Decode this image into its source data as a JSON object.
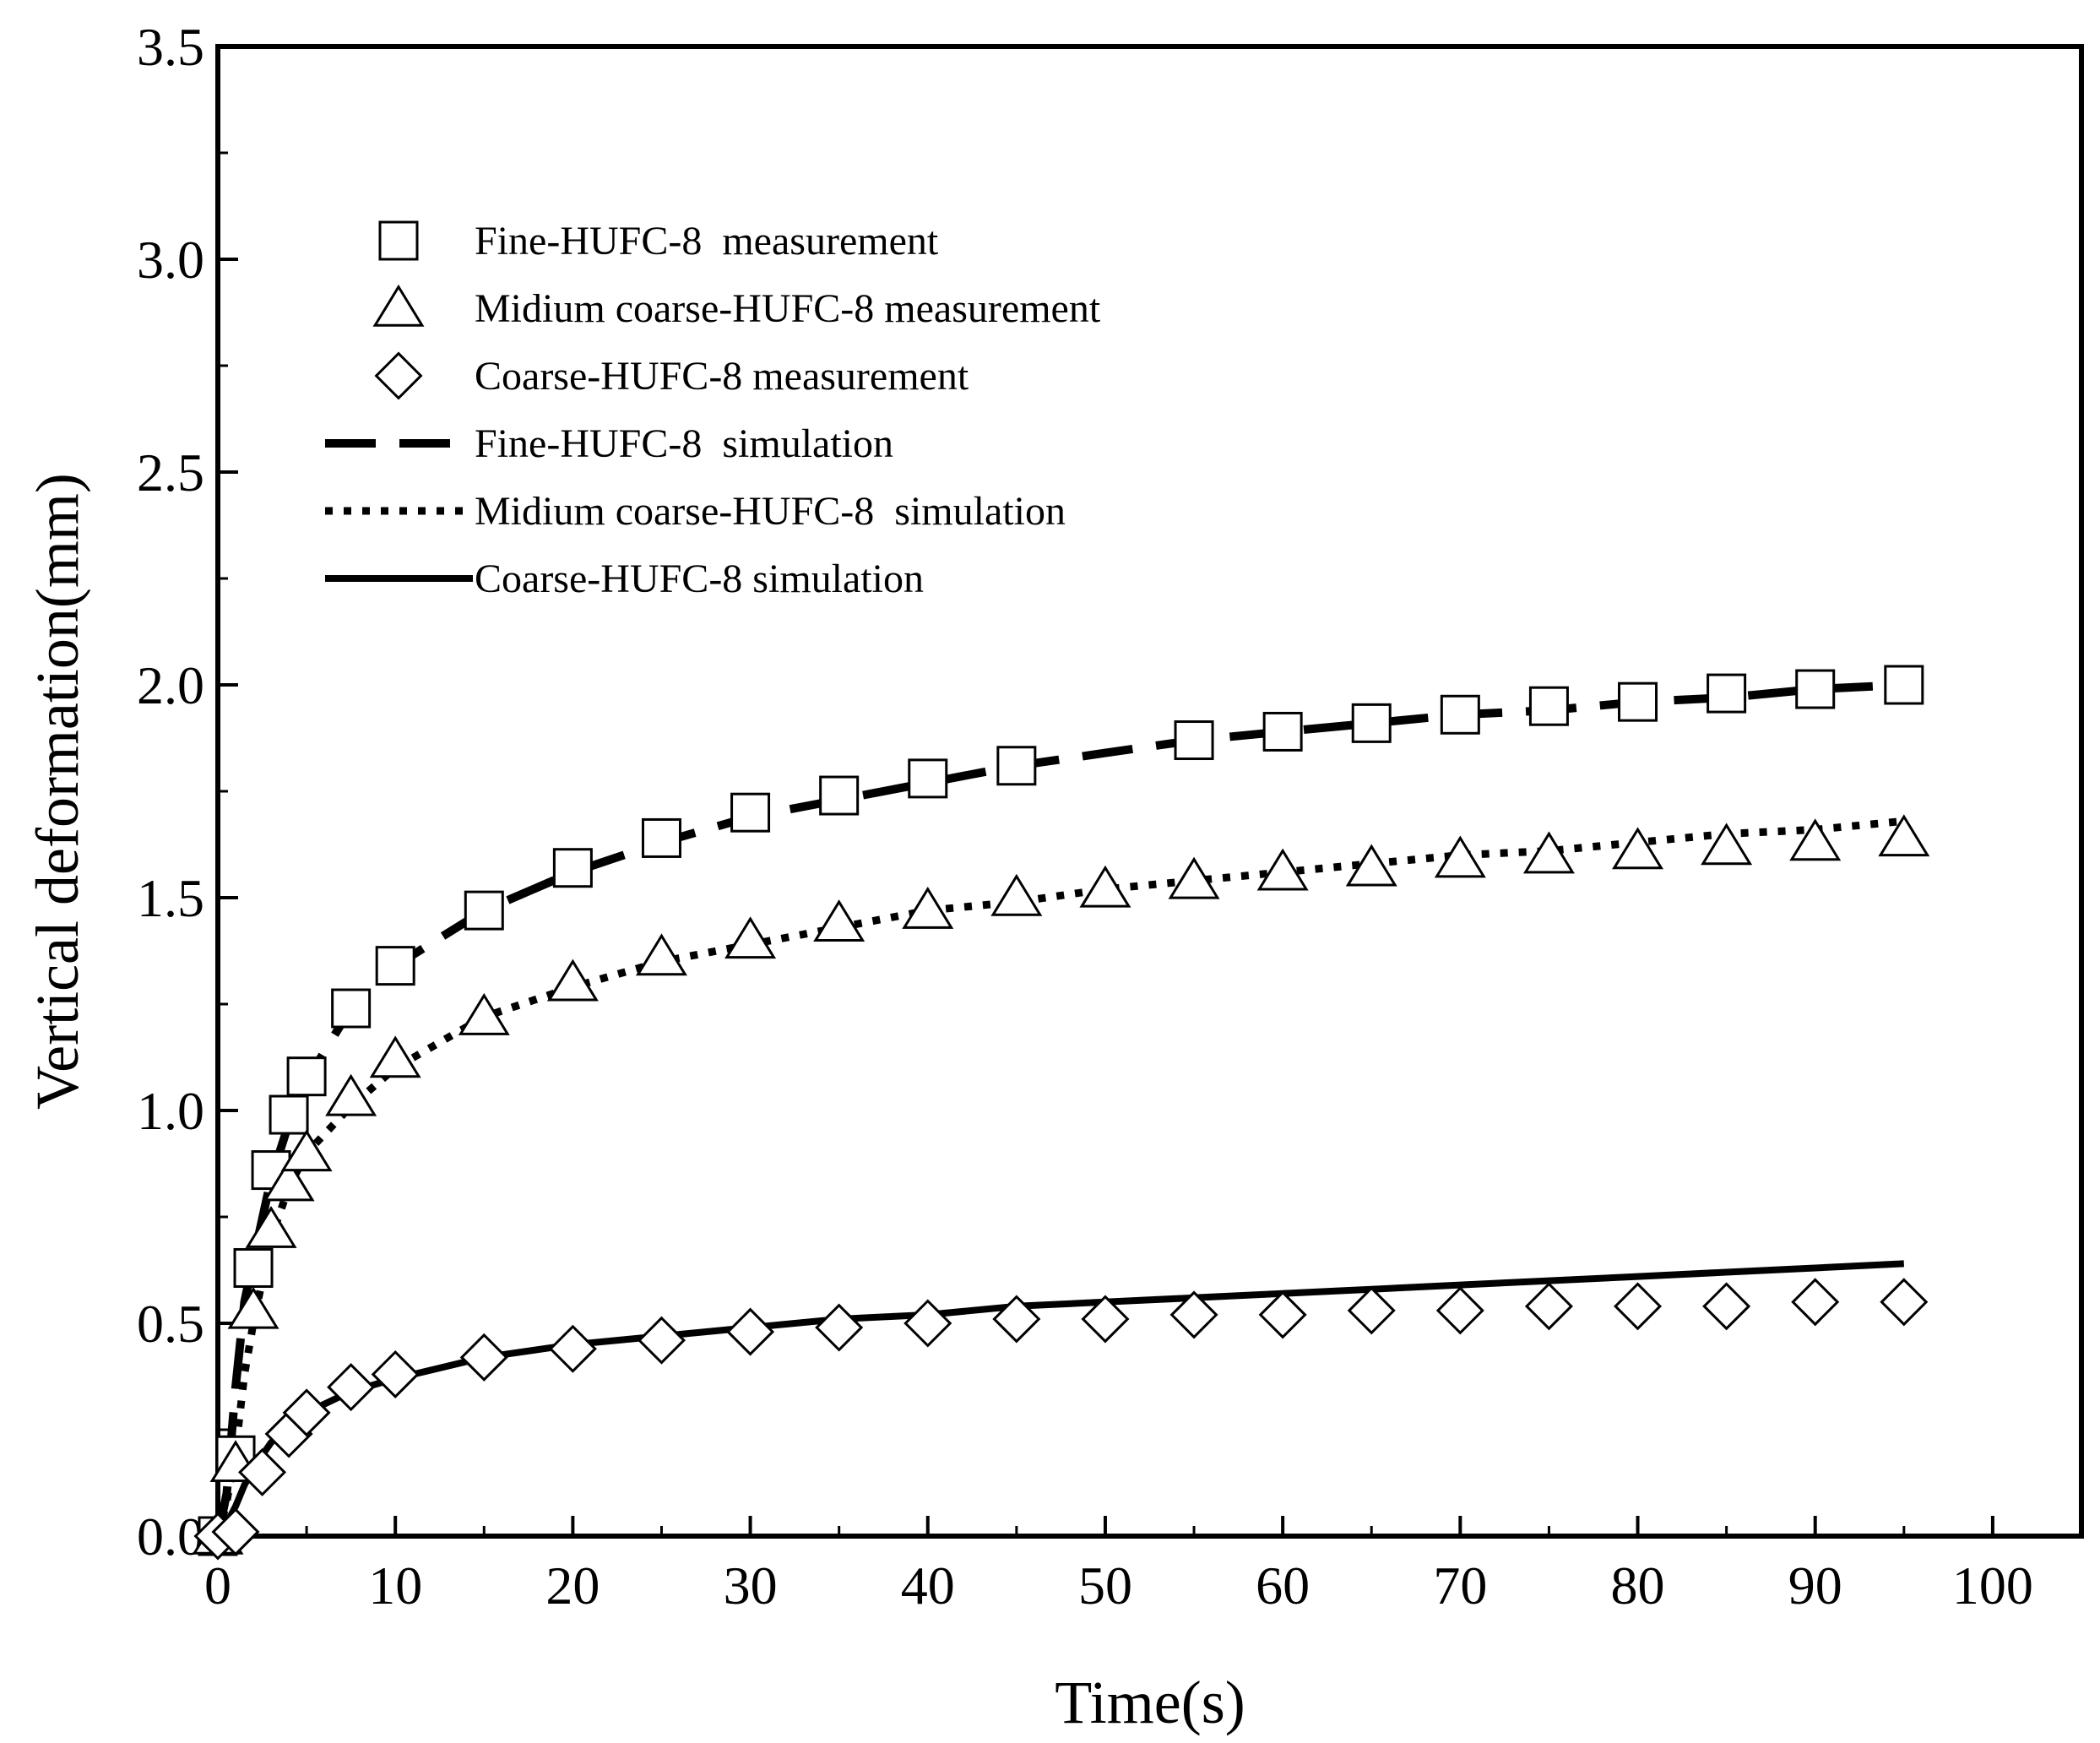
{
  "chart_data": {
    "type": "scatter",
    "xlabel": "Time(s)",
    "ylabel": "Vertical deformation(mm)",
    "xlim": [
      0,
      105
    ],
    "ylim": [
      0,
      3.5
    ],
    "xticks": [
      0,
      10,
      20,
      30,
      40,
      50,
      60,
      70,
      80,
      90,
      100
    ],
    "xtick_labels": [
      "0",
      "10",
      "20",
      "30",
      "40",
      "50",
      "60",
      "70",
      "80",
      "90",
      "100"
    ],
    "yticks": [
      0,
      0.5,
      1.0,
      1.5,
      2.0,
      2.5,
      3.0,
      3.5
    ],
    "ytick_labels": [
      "0.0",
      "0.5",
      "1.0",
      "1.5",
      "2.0",
      "2.5",
      "3.0",
      "3.5"
    ],
    "legend_position": "top-left",
    "series": [
      {
        "name": "Fine-HUFC-8  measurement",
        "kind": "markers",
        "marker": "square",
        "x": [
          0,
          1,
          2,
          3,
          4,
          5,
          7.5,
          10,
          15,
          20,
          25,
          30,
          35,
          40,
          45,
          55,
          60,
          65,
          70,
          75,
          80,
          85,
          90,
          95
        ],
        "y": [
          0,
          0.19,
          0.63,
          0.86,
          0.99,
          1.08,
          1.24,
          1.34,
          1.47,
          1.57,
          1.64,
          1.7,
          1.74,
          1.78,
          1.81,
          1.87,
          1.89,
          1.91,
          1.93,
          1.95,
          1.96,
          1.98,
          1.99,
          2.0
        ]
      },
      {
        "name": "Midium coarse-HUFC-8 measurement",
        "kind": "markers",
        "marker": "triangle",
        "x": [
          0,
          1,
          2,
          3,
          4,
          5,
          7.5,
          10,
          15,
          20,
          25,
          30,
          35,
          40,
          45,
          50,
          55,
          60,
          65,
          70,
          75,
          80,
          85,
          90,
          95
        ],
        "y": [
          0,
          0.17,
          0.53,
          0.72,
          0.83,
          0.9,
          1.03,
          1.12,
          1.22,
          1.3,
          1.36,
          1.4,
          1.44,
          1.47,
          1.5,
          1.52,
          1.54,
          1.56,
          1.57,
          1.59,
          1.6,
          1.61,
          1.62,
          1.63,
          1.64
        ]
      },
      {
        "name": "Coarse-HUFC-8 measurement",
        "kind": "markers",
        "marker": "diamond",
        "x": [
          0,
          1,
          2.5,
          4,
          5,
          7.5,
          10,
          15,
          20,
          25,
          30,
          35,
          40,
          45,
          50,
          55,
          60,
          65,
          70,
          75,
          80,
          85,
          90,
          95
        ],
        "y": [
          0,
          0.01,
          0.15,
          0.24,
          0.29,
          0.35,
          0.38,
          0.42,
          0.44,
          0.46,
          0.48,
          0.49,
          0.5,
          0.51,
          0.51,
          0.52,
          0.52,
          0.53,
          0.53,
          0.54,
          0.54,
          0.54,
          0.55,
          0.55
        ]
      },
      {
        "name": "Fine-HUFC-8  simulation",
        "kind": "line",
        "style": "dashed",
        "x": [
          0,
          0.5,
          1,
          1.5,
          2,
          3,
          4,
          5,
          7.5,
          10,
          15,
          20,
          25,
          30,
          35,
          40,
          45,
          50,
          55,
          60,
          65,
          70,
          75,
          80,
          85,
          90,
          95
        ],
        "y": [
          0,
          0.1,
          0.35,
          0.55,
          0.65,
          0.84,
          0.97,
          1.07,
          1.24,
          1.34,
          1.47,
          1.56,
          1.63,
          1.69,
          1.73,
          1.77,
          1.81,
          1.84,
          1.87,
          1.89,
          1.91,
          1.93,
          1.94,
          1.96,
          1.97,
          1.99,
          2.0
        ]
      },
      {
        "name": "Midium coarse-HUFC-8  simulation",
        "kind": "line",
        "style": "dotted",
        "x": [
          0,
          0.5,
          1,
          1.5,
          2,
          3,
          4,
          5,
          7.5,
          10,
          15,
          20,
          25,
          30,
          35,
          40,
          45,
          50,
          55,
          60,
          65,
          70,
          75,
          80,
          85,
          90,
          95
        ],
        "y": [
          0,
          0.08,
          0.2,
          0.38,
          0.5,
          0.7,
          0.82,
          0.9,
          1.01,
          1.1,
          1.22,
          1.29,
          1.35,
          1.39,
          1.43,
          1.47,
          1.49,
          1.52,
          1.54,
          1.56,
          1.58,
          1.6,
          1.61,
          1.63,
          1.65,
          1.66,
          1.68
        ]
      },
      {
        "name": "Coarse-HUFC-8 simulation",
        "kind": "line",
        "style": "solid",
        "x": [
          0,
          0.5,
          1,
          1.5,
          2,
          3,
          4,
          5,
          7.5,
          10,
          15,
          20,
          25,
          30,
          35,
          40,
          45,
          50,
          55,
          60,
          65,
          70,
          75,
          80,
          85,
          90,
          95
        ],
        "y": [
          0,
          0.03,
          0.07,
          0.12,
          0.16,
          0.22,
          0.26,
          0.29,
          0.34,
          0.37,
          0.42,
          0.45,
          0.47,
          0.49,
          0.51,
          0.52,
          0.54,
          0.55,
          0.56,
          0.57,
          0.58,
          0.59,
          0.6,
          0.61,
          0.62,
          0.63,
          0.64
        ]
      }
    ]
  }
}
